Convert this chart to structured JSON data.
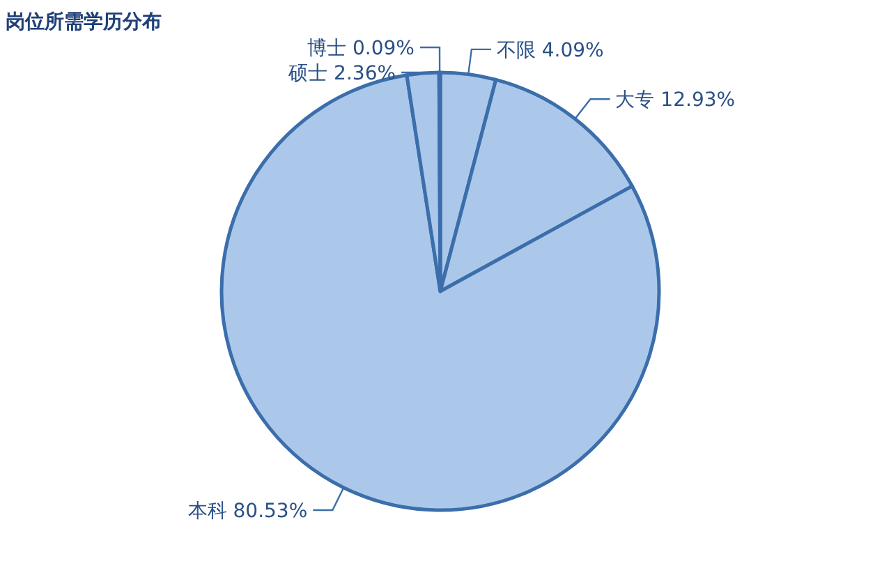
{
  "chart_data": {
    "type": "pie",
    "title": "岗位所需学历分布",
    "categories": [
      "不限",
      "大专",
      "本科",
      "硕士",
      "博士"
    ],
    "values": [
      4.09,
      12.93,
      80.53,
      2.36,
      0.09
    ],
    "value_labels": [
      "4.09%",
      "12.93%",
      "80.53%",
      "2.36%",
      "0.09%"
    ],
    "colors": [
      "#abc8ea",
      "#abc8ea",
      "#abc8ea",
      "#abc8ea",
      "#abc8ea"
    ]
  }
}
